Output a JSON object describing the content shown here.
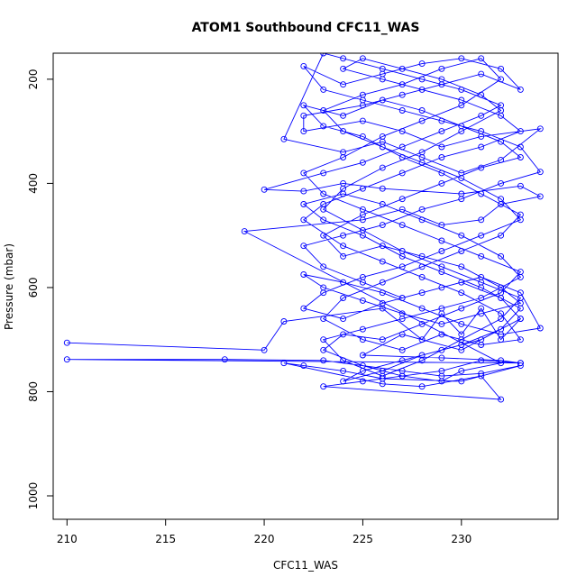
{
  "chart_data": {
    "type": "line",
    "title": "ATOM1 Southbound CFC11_WAS",
    "xlabel": "CFC11_WAS",
    "ylabel": "Pressure (mbar)",
    "xlim": [
      209.3,
      234.9
    ],
    "ylim": [
      1045,
      150
    ],
    "y_reversed": true,
    "x_ticks": [
      210,
      215,
      220,
      225,
      230
    ],
    "y_ticks": [
      200,
      400,
      600,
      800,
      1000
    ],
    "grid": false,
    "legend": "none",
    "series": [
      {
        "color": "#0000ff",
        "marker": "open-circle",
        "points": [
          [
            210,
            706
          ],
          [
            220,
            720
          ],
          [
            221,
            665
          ],
          [
            226,
            640
          ],
          [
            228,
            700
          ],
          [
            229,
            650
          ],
          [
            230,
            690
          ],
          [
            231,
            640
          ],
          [
            232,
            700
          ],
          [
            233,
            660
          ],
          [
            230,
            720
          ],
          [
            227,
            690
          ],
          [
            225,
            730
          ],
          [
            229,
            735
          ],
          [
            232,
            740
          ],
          [
            233,
            745
          ],
          [
            210,
            738
          ],
          [
            218,
            738
          ],
          [
            223,
            740
          ],
          [
            227,
            760
          ],
          [
            229,
            770
          ],
          [
            231,
            765
          ],
          [
            233,
            750
          ],
          [
            230,
            780
          ],
          [
            226,
            775
          ],
          [
            224,
            760
          ],
          [
            222,
            750
          ],
          [
            221,
            745
          ],
          [
            226,
            785
          ],
          [
            228,
            790
          ],
          [
            231,
            770
          ],
          [
            232,
            815
          ],
          [
            223,
            790
          ],
          [
            225,
            780
          ],
          [
            227,
            770
          ],
          [
            229,
            780
          ],
          [
            230,
            760
          ],
          [
            232,
            745
          ],
          [
            219,
            492
          ],
          [
            225,
            470
          ],
          [
            227,
            450
          ],
          [
            229,
            480
          ],
          [
            231,
            470
          ],
          [
            232,
            440
          ],
          [
            234,
            425
          ],
          [
            233,
            405
          ],
          [
            230,
            420
          ],
          [
            226,
            410
          ],
          [
            224,
            400
          ],
          [
            222,
            415
          ],
          [
            220,
            412
          ],
          [
            223,
            380
          ],
          [
            225,
            360
          ],
          [
            227,
            330
          ],
          [
            229,
            300
          ],
          [
            231,
            270
          ],
          [
            232,
            250
          ],
          [
            230,
            220
          ],
          [
            228,
            200
          ],
          [
            226,
            180
          ],
          [
            224,
            160
          ],
          [
            223,
            150
          ],
          [
            221,
            315
          ],
          [
            224,
            340
          ],
          [
            226,
            320
          ],
          [
            228,
            350
          ],
          [
            230,
            380
          ],
          [
            232,
            355
          ],
          [
            234,
            295
          ],
          [
            231,
            310
          ],
          [
            229,
            330
          ],
          [
            227,
            300
          ],
          [
            225,
            280
          ],
          [
            222,
            300
          ],
          [
            222,
            270
          ],
          [
            225,
            250
          ],
          [
            227,
            230
          ],
          [
            229,
            210
          ],
          [
            231,
            190
          ],
          [
            233,
            220
          ],
          [
            232,
            180
          ],
          [
            230,
            160
          ],
          [
            228,
            170
          ],
          [
            226,
            190
          ],
          [
            224,
            210
          ],
          [
            222,
            175
          ],
          [
            223,
            220
          ],
          [
            225,
            240
          ],
          [
            227,
            260
          ],
          [
            229,
            280
          ],
          [
            231,
            300
          ],
          [
            233,
            330
          ],
          [
            234,
            378
          ],
          [
            232,
            400
          ],
          [
            230,
            430
          ],
          [
            228,
            450
          ],
          [
            226,
            480
          ],
          [
            224,
            500
          ],
          [
            222,
            520
          ],
          [
            223,
            560
          ],
          [
            225,
            590
          ],
          [
            227,
            620
          ],
          [
            229,
            600
          ],
          [
            231,
            580
          ],
          [
            233,
            610
          ],
          [
            234,
            678
          ],
          [
            232,
            690
          ],
          [
            230,
            670
          ],
          [
            228,
            640
          ],
          [
            226,
            610
          ],
          [
            224,
            590
          ],
          [
            222,
            575
          ],
          [
            223,
            600
          ],
          [
            225,
            625
          ],
          [
            227,
            650
          ],
          [
            229,
            670
          ],
          [
            231,
            650
          ],
          [
            233,
            630
          ],
          [
            232,
            600
          ],
          [
            230,
            560
          ],
          [
            228,
            540
          ],
          [
            226,
            520
          ],
          [
            224,
            540
          ],
          [
            223,
            500
          ],
          [
            225,
            460
          ],
          [
            227,
            430
          ],
          [
            229,
            400
          ],
          [
            231,
            370
          ],
          [
            233,
            350
          ],
          [
            232,
            320
          ],
          [
            230,
            290
          ],
          [
            228,
            260
          ],
          [
            226,
            240
          ],
          [
            224,
            270
          ],
          [
            222,
            250
          ],
          [
            223,
            290
          ],
          [
            225,
            310
          ],
          [
            227,
            350
          ],
          [
            229,
            380
          ],
          [
            231,
            420
          ],
          [
            233,
            460
          ],
          [
            232,
            500
          ],
          [
            230,
            530
          ],
          [
            228,
            560
          ],
          [
            226,
            590
          ],
          [
            224,
            620
          ],
          [
            223,
            660
          ],
          [
            225,
            700
          ],
          [
            227,
            720
          ],
          [
            229,
            690
          ],
          [
            231,
            710
          ],
          [
            233,
            700
          ],
          [
            232,
            650
          ],
          [
            230,
            610
          ],
          [
            228,
            580
          ],
          [
            226,
            550
          ],
          [
            224,
            520
          ],
          [
            222,
            470
          ],
          [
            223,
            440
          ],
          [
            225,
            410
          ],
          [
            227,
            380
          ],
          [
            229,
            350
          ],
          [
            231,
            330
          ],
          [
            233,
            300
          ],
          [
            232,
            270
          ],
          [
            230,
            240
          ],
          [
            228,
            220
          ],
          [
            226,
            200
          ],
          [
            224,
            180
          ],
          [
            225,
            160
          ],
          [
            227,
            180
          ],
          [
            229,
            200
          ],
          [
            231,
            230
          ],
          [
            232,
            260
          ],
          [
            230,
            300
          ],
          [
            228,
            340
          ],
          [
            226,
            370
          ],
          [
            224,
            410
          ],
          [
            223,
            450
          ],
          [
            225,
            490
          ],
          [
            227,
            530
          ],
          [
            229,
            560
          ],
          [
            231,
            590
          ],
          [
            233,
            620
          ],
          [
            232,
            660
          ],
          [
            230,
            700
          ],
          [
            228,
            740
          ],
          [
            226,
            770
          ],
          [
            224,
            740
          ],
          [
            223,
            700
          ],
          [
            225,
            680
          ],
          [
            227,
            660
          ],
          [
            229,
            640
          ],
          [
            231,
            620
          ],
          [
            233,
            580
          ],
          [
            232,
            540
          ],
          [
            230,
            500
          ],
          [
            228,
            470
          ],
          [
            226,
            440
          ],
          [
            224,
            420
          ],
          [
            222,
            440
          ],
          [
            223,
            470
          ],
          [
            225,
            500
          ],
          [
            227,
            540
          ],
          [
            229,
            570
          ],
          [
            231,
            600
          ],
          [
            233,
            640
          ],
          [
            232,
            680
          ],
          [
            230,
            710
          ],
          [
            228,
            730
          ],
          [
            226,
            760
          ],
          [
            224,
            780
          ],
          [
            225,
            760
          ],
          [
            227,
            740
          ],
          [
            229,
            720
          ],
          [
            231,
            700
          ],
          [
            233,
            660
          ],
          [
            232,
            620
          ],
          [
            230,
            590
          ],
          [
            228,
            610
          ],
          [
            226,
            630
          ],
          [
            224,
            660
          ],
          [
            222,
            640
          ],
          [
            223,
            610
          ],
          [
            225,
            580
          ],
          [
            227,
            560
          ],
          [
            229,
            530
          ],
          [
            231,
            500
          ],
          [
            233,
            470
          ],
          [
            232,
            430
          ],
          [
            230,
            390
          ],
          [
            228,
            360
          ],
          [
            226,
            330
          ],
          [
            224,
            300
          ],
          [
            223,
            260
          ],
          [
            225,
            230
          ],
          [
            227,
            210
          ],
          [
            229,
            180
          ],
          [
            231,
            160
          ],
          [
            232,
            200
          ],
          [
            230,
            250
          ],
          [
            228,
            280
          ],
          [
            226,
            310
          ],
          [
            224,
            350
          ],
          [
            222,
            380
          ],
          [
            223,
            420
          ],
          [
            225,
            450
          ],
          [
            227,
            480
          ],
          [
            229,
            510
          ],
          [
            231,
            540
          ],
          [
            233,
            570
          ],
          [
            232,
            610
          ],
          [
            230,
            640
          ],
          [
            228,
            670
          ],
          [
            226,
            700
          ],
          [
            224,
            690
          ],
          [
            223,
            720
          ],
          [
            225,
            750
          ],
          [
            227,
            770
          ],
          [
            229,
            760
          ],
          [
            231,
            740
          ],
          [
            233,
            745
          ]
        ]
      }
    ]
  }
}
